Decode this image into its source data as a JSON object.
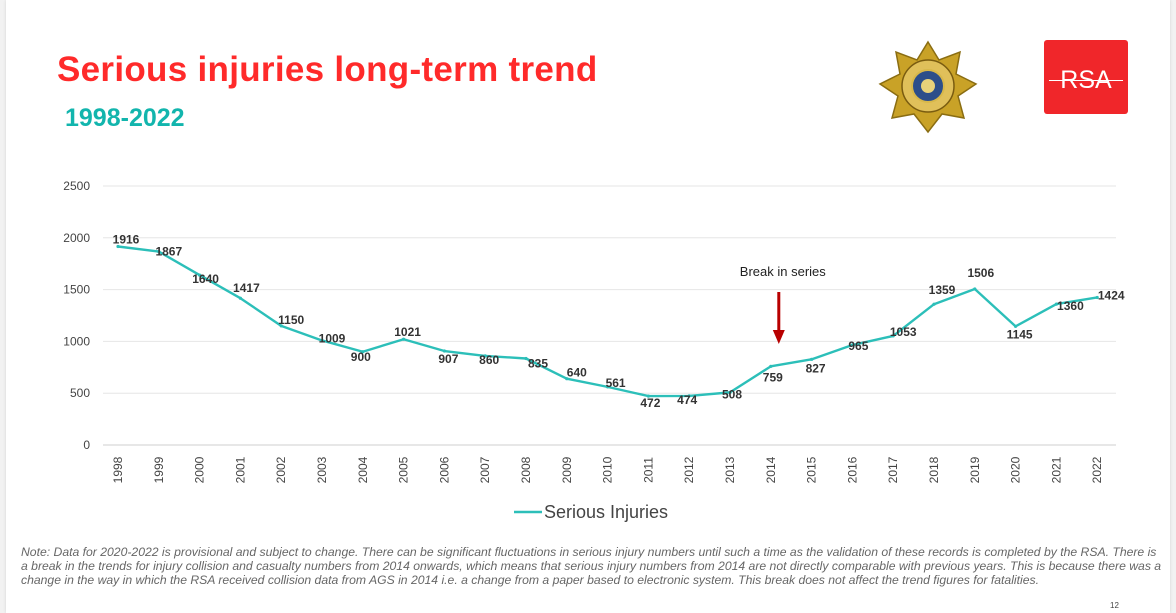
{
  "slide": {
    "title": "Serious injuries long-term trend",
    "subtitle": "1998-2022",
    "logo_text": "RSA",
    "note": "Note: Data for 2020-2022 is provisional and subject to change. There can be significant fluctuations in serious injury numbers until such a time as the validation of these records is completed by the RSA. There is a break in the trends for injury collision and casualty numbers from 2014 onwards, which means that serious injury numbers from 2014 are not directly comparable with previous years. This is because there was a change in the way in which the RSA received collision data from AGS in 2014 i.e. a change from a paper based to electronic system. This break does not affect the trend figures for fatalities.",
    "page_number": "12"
  },
  "colors": {
    "title": "#ff2a2a",
    "subtitle": "#12b5ad",
    "line": "#2cbfb9",
    "arrow": "#b80000",
    "logo_bg": "#f0262a"
  },
  "chart_data": {
    "type": "line",
    "title": "Serious injuries long-term trend",
    "subtitle": "1998-2022",
    "xlabel": "",
    "ylabel": "",
    "ylim": [
      0,
      2500
    ],
    "yticks": [
      0,
      500,
      1000,
      1500,
      2000,
      2500
    ],
    "grid": true,
    "legend_position": "bottom",
    "categories": [
      "1998",
      "1999",
      "2000",
      "2001",
      "2002",
      "2003",
      "2004",
      "2005",
      "2006",
      "2007",
      "2008",
      "2009",
      "2010",
      "2011",
      "2012",
      "2013",
      "2014",
      "2015",
      "2016",
      "2017",
      "2018",
      "2019",
      "2020",
      "2021",
      "2022"
    ],
    "series": [
      {
        "name": "Serious Injuries",
        "values": [
          1916,
          1867,
          1640,
          1417,
          1150,
          1009,
          900,
          1021,
          907,
          860,
          835,
          640,
          561,
          472,
          474,
          508,
          759,
          827,
          965,
          1053,
          1359,
          1506,
          1145,
          1360,
          1424
        ]
      }
    ],
    "annotations": [
      {
        "text": "Break in series",
        "x": "2014"
      }
    ]
  }
}
